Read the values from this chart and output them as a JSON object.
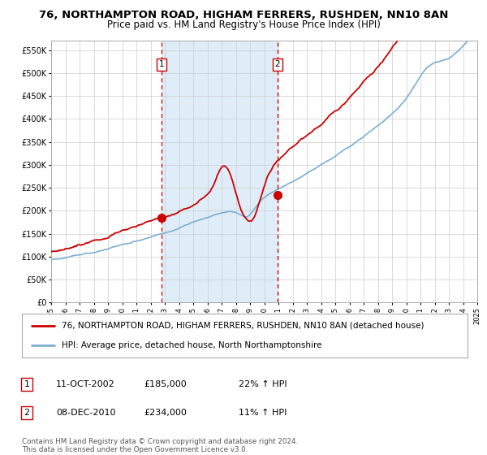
{
  "title": "76, NORTHAMPTON ROAD, HIGHAM FERRERS, RUSHDEN, NN10 8AN",
  "subtitle": "Price paid vs. HM Land Registry's House Price Index (HPI)",
  "title_fontsize": 9.5,
  "subtitle_fontsize": 8.5,
  "background_color": "#ffffff",
  "plot_bg_color": "#ffffff",
  "grid_color": "#cccccc",
  "hpi_shade_color": "#daeaf8",
  "ylim": [
    0,
    570000
  ],
  "yticks": [
    0,
    50000,
    100000,
    150000,
    200000,
    250000,
    300000,
    350000,
    400000,
    450000,
    500000,
    550000
  ],
  "ytick_labels": [
    "£0",
    "£50K",
    "£100K",
    "£150K",
    "£200K",
    "£250K",
    "£300K",
    "£350K",
    "£400K",
    "£450K",
    "£500K",
    "£550K"
  ],
  "start_year": 1995,
  "end_year": 2025,
  "xtick_years": [
    1995,
    1996,
    1997,
    1998,
    1999,
    2000,
    2001,
    2002,
    2003,
    2004,
    2005,
    2006,
    2007,
    2008,
    2009,
    2010,
    2011,
    2012,
    2013,
    2014,
    2015,
    2016,
    2017,
    2018,
    2019,
    2020,
    2021,
    2022,
    2023,
    2024,
    2025
  ],
  "vline1_year": 2002.78,
  "vline2_year": 2010.93,
  "vline1_label": "1",
  "vline2_label": "2",
  "shade_start": 2002.78,
  "shade_end": 2010.93,
  "marker1_x": 2002.78,
  "marker1_y": 185000,
  "marker2_x": 2010.93,
  "marker2_y": 234000,
  "red_color": "#cc0000",
  "blue_color": "#7bafd4",
  "legend1_label": "76, NORTHAMPTON ROAD, HIGHAM FERRERS, RUSHDEN, NN10 8AN (detached house)",
  "legend2_label": "HPI: Average price, detached house, North Northamptonshire",
  "table_entries": [
    {
      "num": "1",
      "date": "11-OCT-2002",
      "price": "£185,000",
      "change": "22% ↑ HPI"
    },
    {
      "num": "2",
      "date": "08-DEC-2010",
      "price": "£234,000",
      "change": "11% ↑ HPI"
    }
  ],
  "footnote": "Contains HM Land Registry data © Crown copyright and database right 2024.\nThis data is licensed under the Open Government Licence v3.0."
}
